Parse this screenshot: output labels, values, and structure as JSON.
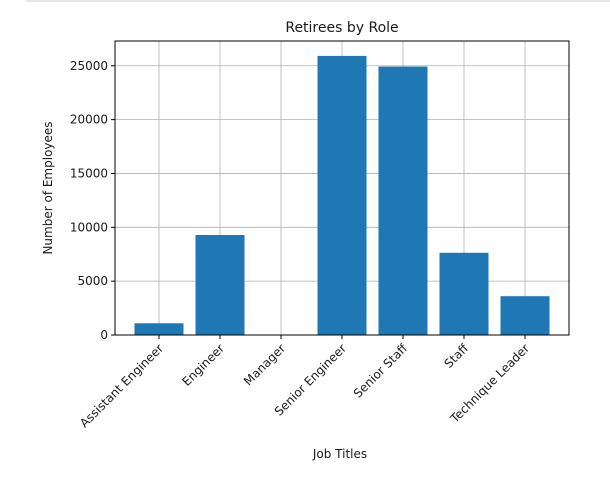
{
  "chart_data": {
    "type": "bar",
    "title": "Retirees by Role",
    "xlabel": "Job Titles",
    "ylabel": "Number of Employees",
    "categories": [
      "Assistant Engineer",
      "Engineer",
      "Manager",
      "Senior Engineer",
      "Senior Staff",
      "Staff",
      "Technique Leader"
    ],
    "values": [
      1090,
      9285,
      2,
      25916,
      24926,
      7636,
      3603
    ],
    "ylim": [
      0,
      27300
    ],
    "yticks": [
      0,
      5000,
      10000,
      15000,
      20000,
      25000
    ],
    "grid": true,
    "bar_color": "#1f77b4"
  }
}
